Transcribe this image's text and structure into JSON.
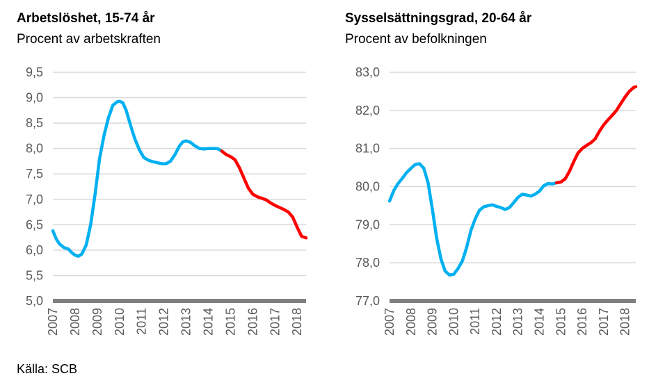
{
  "source": "Källa: SCB",
  "colors": {
    "historical": "#00b0f0",
    "forecast": "#ff0000",
    "axis": "#7f7f7f",
    "grid": "#d9d9d9",
    "text": "#595959"
  },
  "chart_data": [
    {
      "type": "line",
      "title": "Arbetslöshet, 15-74 år",
      "subtitle": "Procent av arbetskraften",
      "xlim": [
        2007,
        2018.4
      ],
      "ylim": [
        5.0,
        9.5
      ],
      "yticks": [
        "5,0",
        "5,5",
        "6,0",
        "6,5",
        "7,0",
        "7,5",
        "8,0",
        "8,5",
        "9,0",
        "9,5"
      ],
      "xticks": [
        "2007",
        "2008",
        "2009",
        "2010",
        "2011",
        "2012",
        "2013",
        "2014",
        "2015",
        "2016",
        "2017",
        "2018"
      ],
      "grid": true,
      "series": [
        {
          "color": "historical",
          "x": [
            2007.0,
            2007.15,
            2007.3,
            2007.5,
            2007.7,
            2007.85,
            2008.0,
            2008.15,
            2008.3,
            2008.5,
            2008.7,
            2008.9,
            2009.1,
            2009.3,
            2009.5,
            2009.7,
            2009.9,
            2010.0,
            2010.15,
            2010.3,
            2010.5,
            2010.7,
            2010.9,
            2011.1,
            2011.3,
            2011.5,
            2011.7,
            2011.9,
            2012.1,
            2012.3,
            2012.5,
            2012.7,
            2012.85,
            2013.0,
            2013.2,
            2013.4,
            2013.6,
            2013.8,
            2014.0,
            2014.2,
            2014.4,
            2014.6
          ],
          "y": [
            6.38,
            6.22,
            6.12,
            6.05,
            6.02,
            5.95,
            5.9,
            5.88,
            5.92,
            6.1,
            6.5,
            7.1,
            7.8,
            8.25,
            8.6,
            8.85,
            8.92,
            8.93,
            8.9,
            8.75,
            8.45,
            8.18,
            7.97,
            7.82,
            7.77,
            7.74,
            7.72,
            7.7,
            7.7,
            7.75,
            7.88,
            8.05,
            8.13,
            8.15,
            8.12,
            8.05,
            8.0,
            7.99,
            8.0,
            8.0,
            8.0,
            7.95
          ]
        },
        {
          "color": "forecast",
          "x": [
            2014.6,
            2014.8,
            2015.0,
            2015.2,
            2015.4,
            2015.6,
            2015.8,
            2016.0,
            2016.2,
            2016.4,
            2016.6,
            2016.8,
            2017.0,
            2017.2,
            2017.4,
            2017.6,
            2017.8,
            2018.0,
            2018.2,
            2018.4
          ],
          "y": [
            7.95,
            7.88,
            7.84,
            7.78,
            7.62,
            7.42,
            7.22,
            7.1,
            7.05,
            7.02,
            6.99,
            6.93,
            6.88,
            6.84,
            6.8,
            6.75,
            6.65,
            6.45,
            6.27,
            6.24
          ]
        }
      ]
    },
    {
      "type": "line",
      "title": "Sysselsättningsgrad, 20-64 år",
      "subtitle": "Procent av befolkningen",
      "xlim": [
        2007,
        2018.5
      ],
      "ylim": [
        77.0,
        83.0
      ],
      "yticks": [
        "77,0",
        "78,0",
        "79,0",
        "80,0",
        "81,0",
        "82,0",
        "83,0"
      ],
      "xticks": [
        "2007",
        "2008",
        "2009",
        "2010",
        "2011",
        "2012",
        "2013",
        "2014",
        "2015",
        "2016",
        "2017",
        "2018"
      ],
      "grid": true,
      "series": [
        {
          "color": "historical",
          "x": [
            2007.0,
            2007.2,
            2007.4,
            2007.6,
            2007.8,
            2008.0,
            2008.2,
            2008.4,
            2008.6,
            2008.8,
            2009.0,
            2009.2,
            2009.4,
            2009.6,
            2009.8,
            2010.0,
            2010.2,
            2010.4,
            2010.6,
            2010.8,
            2011.0,
            2011.2,
            2011.4,
            2011.6,
            2011.8,
            2012.0,
            2012.2,
            2012.4,
            2012.6,
            2012.8,
            2013.0,
            2013.2,
            2013.4,
            2013.6,
            2013.8,
            2014.0,
            2014.2,
            2014.4,
            2014.6,
            2014.8
          ],
          "y": [
            79.62,
            79.9,
            80.08,
            80.22,
            80.37,
            80.48,
            80.58,
            80.6,
            80.48,
            80.1,
            79.4,
            78.65,
            78.1,
            77.78,
            77.68,
            77.7,
            77.85,
            78.05,
            78.4,
            78.85,
            79.15,
            79.38,
            79.47,
            79.5,
            79.52,
            79.48,
            79.45,
            79.4,
            79.45,
            79.58,
            79.72,
            79.8,
            79.78,
            79.75,
            79.8,
            79.88,
            80.02,
            80.08,
            80.07,
            80.1
          ]
        },
        {
          "color": "forecast",
          "x": [
            2014.8,
            2015.0,
            2015.2,
            2015.4,
            2015.6,
            2015.8,
            2016.0,
            2016.2,
            2016.4,
            2016.6,
            2016.8,
            2017.0,
            2017.2,
            2017.4,
            2017.6,
            2017.8,
            2018.0,
            2018.2,
            2018.4,
            2018.5
          ],
          "y": [
            80.1,
            80.12,
            80.2,
            80.4,
            80.65,
            80.88,
            81.0,
            81.08,
            81.15,
            81.25,
            81.45,
            81.62,
            81.75,
            81.87,
            82.0,
            82.18,
            82.35,
            82.5,
            82.6,
            82.62
          ]
        }
      ]
    }
  ]
}
